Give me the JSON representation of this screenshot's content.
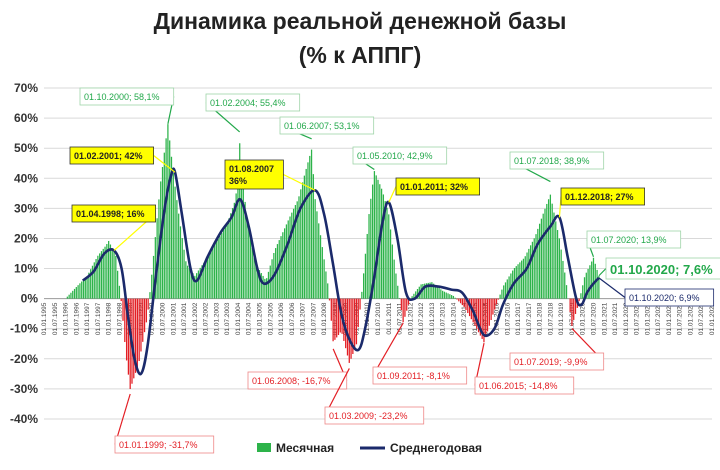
{
  "chart_data": {
    "type": "bar",
    "title": "Динамика реальной денежной базы",
    "subtitle": "(% к АППГ)",
    "ylim": [
      -45,
      72
    ],
    "yticks": [
      70,
      60,
      50,
      40,
      30,
      20,
      10,
      0,
      -10,
      -20,
      -30,
      -40
    ],
    "ytick_labels": [
      "70%",
      "60%",
      "50%",
      "40%",
      "30%",
      "20%",
      "10%",
      "0%",
      "-10%",
      "-20%",
      "-30%",
      "-40%"
    ],
    "x_range": [
      1995.0,
      2026.0
    ],
    "xtick_labels": [
      "01.01.1995",
      "01.07.1995",
      "01.01.1996",
      "01.07.1996",
      "01.01.1997",
      "01.07.1997",
      "01.01.1998",
      "01.07.1998",
      "01.01.1999",
      "01.07.1999",
      "01.01.2000",
      "01.07.2000",
      "01.01.2001",
      "01.07.2001",
      "01.01.2002",
      "01.07.2002",
      "01.01.2003",
      "01.07.2003",
      "01.01.2004",
      "01.07.2004",
      "01.01.2005",
      "01.07.2005",
      "01.01.2006",
      "01.07.2006",
      "01.01.2007",
      "01.07.2007",
      "01.01.2008",
      "01.07.2008",
      "01.01.2009",
      "01.07.2009",
      "01.01.2010",
      "01.07.2010",
      "01.01.2011",
      "01.07.2011",
      "01.01.2012",
      "01.07.2012",
      "01.01.2013",
      "01.07.2013",
      "01.01.2014",
      "01.07.2014",
      "01.01.2015",
      "01.07.2015",
      "01.01.2016",
      "01.07.2016",
      "01.01.2017",
      "01.07.2017",
      "01.01.2018",
      "01.07.2018",
      "01.01.2019",
      "01.07.2019",
      "01.01.2020",
      "01.07.2020",
      "01.01.2021",
      "01.07.2021",
      "01.01.2022",
      "01.07.2022",
      "01.01.2023",
      "01.07.2023",
      "01.01.2024",
      "01.07.2024",
      "01.01.2025",
      "01.07.2025",
      "01.01.2026"
    ],
    "grid": true,
    "legend_position": "bottom",
    "colors": {
      "positive": "#2db34a",
      "negative": "#e31e24",
      "line": "#1b2a6b",
      "callout_yellow": "#ffff00",
      "green_text": "#22a84a",
      "red_text": "#e31e24"
    },
    "series": [
      {
        "name": "Месячная",
        "kind": "bar",
        "anchors": [
          [
            1996.0,
            0
          ],
          [
            1996.5,
            4
          ],
          [
            1997.0,
            8
          ],
          [
            1997.5,
            16
          ],
          [
            1998.0,
            22
          ],
          [
            1998.33,
            16
          ],
          [
            1998.6,
            -2
          ],
          [
            1998.8,
            -20
          ],
          [
            1999.0,
            -31.7
          ],
          [
            1999.4,
            -22
          ],
          [
            1999.8,
            -6
          ],
          [
            2000.0,
            8
          ],
          [
            2000.4,
            38
          ],
          [
            2000.75,
            58.1
          ],
          [
            2001.0,
            42
          ],
          [
            2001.3,
            26
          ],
          [
            2001.6,
            12
          ],
          [
            2002.0,
            8
          ],
          [
            2002.5,
            14
          ],
          [
            2003.0,
            22
          ],
          [
            2003.5,
            28
          ],
          [
            2003.9,
            36
          ],
          [
            2004.08,
            55.4
          ],
          [
            2004.4,
            28
          ],
          [
            2004.8,
            12
          ],
          [
            2005.3,
            6
          ],
          [
            2005.7,
            16
          ],
          [
            2006.2,
            24
          ],
          [
            2006.8,
            34
          ],
          [
            2007.42,
            53.1
          ],
          [
            2007.58,
            36
          ],
          [
            2007.9,
            20
          ],
          [
            2008.2,
            4
          ],
          [
            2008.42,
            -16.7
          ],
          [
            2008.8,
            -12
          ],
          [
            2009.17,
            -23.2
          ],
          [
            2009.5,
            -16
          ],
          [
            2009.8,
            6
          ],
          [
            2010.1,
            30
          ],
          [
            2010.33,
            42.9
          ],
          [
            2010.7,
            36
          ],
          [
            2011.0,
            28
          ],
          [
            2011.3,
            10
          ],
          [
            2011.67,
            -8.1
          ],
          [
            2012.0,
            0
          ],
          [
            2012.5,
            5
          ],
          [
            2013.0,
            6
          ],
          [
            2013.5,
            3
          ],
          [
            2014.0,
            1
          ],
          [
            2014.5,
            -3
          ],
          [
            2014.9,
            -8
          ],
          [
            2015.42,
            -14.8
          ],
          [
            2015.8,
            -6
          ],
          [
            2016.3,
            4
          ],
          [
            2016.8,
            10
          ],
          [
            2017.3,
            14
          ],
          [
            2017.8,
            22
          ],
          [
            2018.5,
            38.9
          ],
          [
            2018.9,
            24
          ],
          [
            2019.2,
            8
          ],
          [
            2019.5,
            -9.9
          ],
          [
            2019.8,
            -2
          ],
          [
            2020.1,
            8
          ],
          [
            2020.5,
            13.9
          ],
          [
            2020.75,
            7.6
          ]
        ]
      },
      {
        "name": "Среднегодовая",
        "kind": "line",
        "anchors": [
          [
            1996.8,
            6
          ],
          [
            1997.3,
            9
          ],
          [
            1997.8,
            15
          ],
          [
            1998.25,
            16
          ],
          [
            1998.6,
            10
          ],
          [
            1998.9,
            -6
          ],
          [
            1999.2,
            -20
          ],
          [
            1999.5,
            -25
          ],
          [
            1999.8,
            -16
          ],
          [
            2000.2,
            8
          ],
          [
            2000.6,
            30
          ],
          [
            2000.9,
            41
          ],
          [
            2001.08,
            42
          ],
          [
            2001.4,
            28
          ],
          [
            2001.8,
            10
          ],
          [
            2002.1,
            6
          ],
          [
            2002.6,
            14
          ],
          [
            2003.2,
            22
          ],
          [
            2003.7,
            27
          ],
          [
            2004.1,
            33
          ],
          [
            2004.5,
            24
          ],
          [
            2004.9,
            10
          ],
          [
            2005.2,
            5
          ],
          [
            2005.7,
            8
          ],
          [
            2006.3,
            18
          ],
          [
            2006.9,
            30
          ],
          [
            2007.58,
            36
          ],
          [
            2008.0,
            28
          ],
          [
            2008.4,
            12
          ],
          [
            2008.8,
            -5
          ],
          [
            2009.2,
            -14
          ],
          [
            2009.6,
            -17
          ],
          [
            2009.9,
            -10
          ],
          [
            2010.3,
            6
          ],
          [
            2010.7,
            25
          ],
          [
            2011.0,
            32
          ],
          [
            2011.4,
            20
          ],
          [
            2011.8,
            2
          ],
          [
            2012.2,
            0
          ],
          [
            2012.7,
            4
          ],
          [
            2013.3,
            4
          ],
          [
            2013.9,
            3
          ],
          [
            2014.4,
            2
          ],
          [
            2014.9,
            -4
          ],
          [
            2015.4,
            -12
          ],
          [
            2015.9,
            -10
          ],
          [
            2016.3,
            -2
          ],
          [
            2016.8,
            5
          ],
          [
            2017.4,
            10
          ],
          [
            2017.9,
            18
          ],
          [
            2018.5,
            24
          ],
          [
            2018.92,
            27
          ],
          [
            2019.3,
            14
          ],
          [
            2019.7,
            0
          ],
          [
            2019.95,
            -2
          ],
          [
            2020.2,
            2
          ],
          [
            2020.5,
            5
          ],
          [
            2020.75,
            6.9
          ]
        ]
      }
    ],
    "annotations": [
      {
        "text": "01.10.2000; 58,1%",
        "x": 2000.75,
        "y": 58.1,
        "style": "green"
      },
      {
        "text": "01.02.2004; 55,4%",
        "x": 2004.08,
        "y": 55.4,
        "style": "green"
      },
      {
        "text": "01.06.2007; 53,1%",
        "x": 2007.42,
        "y": 53.1,
        "style": "green"
      },
      {
        "text": "01.05.2010; 42,9%",
        "x": 2010.33,
        "y": 42.9,
        "style": "green"
      },
      {
        "text": "01.07.2018; 38,9%",
        "x": 2018.5,
        "y": 38.9,
        "style": "green"
      },
      {
        "text": "01.07.2020; 13,9%",
        "x": 2020.5,
        "y": 13.9,
        "style": "green"
      },
      {
        "text": "01.10.2020; 7,6%",
        "x": 2020.75,
        "y": 7.6,
        "style": "green-large"
      },
      {
        "text": "01.02.2001; 42%",
        "x": 2001.08,
        "y": 42,
        "style": "yellow"
      },
      {
        "text": "01.04.1998; 16%",
        "x": 1998.25,
        "y": 16,
        "style": "yellow"
      },
      {
        "text": "01.08.2007\n36%",
        "x": 2007.58,
        "y": 36,
        "style": "yellow"
      },
      {
        "text": "01.01.2011; 32%",
        "x": 2011.0,
        "y": 32,
        "style": "yellow"
      },
      {
        "text": "01.12.2018; 27%",
        "x": 2018.92,
        "y": 27,
        "style": "yellow"
      },
      {
        "text": "01.10.2020; 6,9%",
        "x": 2020.75,
        "y": 6.9,
        "style": "navy"
      },
      {
        "text": "01.06.2008; -16,7%",
        "x": 2008.42,
        "y": -16.7,
        "style": "red"
      },
      {
        "text": "01.03.2009; -23,2%",
        "x": 2009.17,
        "y": -23.2,
        "style": "red"
      },
      {
        "text": "01.09.2011; -8,1%",
        "x": 2011.67,
        "y": -8.1,
        "style": "red"
      },
      {
        "text": "01.06.2015; -14,8%",
        "x": 2015.42,
        "y": -14.8,
        "style": "red"
      },
      {
        "text": "01.07.2019; -9,9%",
        "x": 2019.5,
        "y": -9.9,
        "style": "red"
      },
      {
        "text": "01.01.1999; -31,7%",
        "x": 1999.0,
        "y": -31.7,
        "style": "red"
      }
    ]
  }
}
